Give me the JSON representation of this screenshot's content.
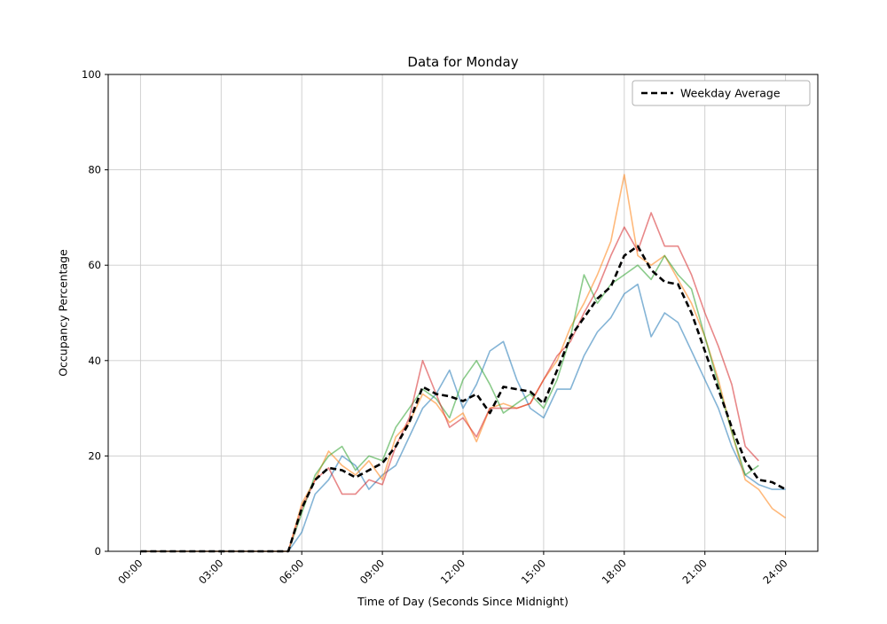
{
  "chart_data": {
    "type": "line",
    "title": "Data for Monday",
    "xlabel": "Time of Day (Seconds Since Midnight)",
    "ylabel": "Occupancy Percentage",
    "ylim": [
      0,
      100
    ],
    "xlim_hours": [
      -1.2,
      25.2
    ],
    "grid": true,
    "y_ticks": [
      0,
      20,
      40,
      60,
      80,
      100
    ],
    "x_ticks": [
      {
        "hour": 0,
        "label": "00:00"
      },
      {
        "hour": 3,
        "label": "03:00"
      },
      {
        "hour": 6,
        "label": "06:00"
      },
      {
        "hour": 9,
        "label": "09:00"
      },
      {
        "hour": 12,
        "label": "12:00"
      },
      {
        "hour": 15,
        "label": "15:00"
      },
      {
        "hour": 18,
        "label": "18:00"
      },
      {
        "hour": 21,
        "label": "21:00"
      },
      {
        "hour": 24,
        "label": "24:00"
      }
    ],
    "x_hours": [
      0,
      0.5,
      1,
      1.5,
      2,
      2.5,
      3,
      3.5,
      4,
      4.5,
      5,
      5.5,
      6,
      6.5,
      7,
      7.5,
      8,
      8.5,
      9,
      9.5,
      10,
      10.5,
      11,
      11.5,
      12,
      12.5,
      13,
      13.5,
      14,
      14.5,
      15,
      15.5,
      16,
      16.5,
      17,
      17.5,
      18,
      18.5,
      19,
      19.5,
      20,
      20.5,
      21,
      21.5,
      22,
      22.5,
      23,
      23.5,
      24
    ],
    "series": [
      {
        "name": "series-1",
        "data_name": "day-series-blue",
        "color": "rgba(31,119,180,0.55)",
        "width": 1.6,
        "dash": null,
        "values": [
          0,
          0,
          0,
          0,
          0,
          0,
          0,
          0,
          0,
          0,
          0,
          0,
          4,
          12,
          15,
          20,
          18,
          13,
          16,
          18,
          24,
          30,
          33,
          38,
          30,
          35,
          42,
          44,
          36,
          30,
          28,
          34,
          34,
          41,
          46,
          49,
          54,
          56,
          45,
          50,
          48,
          42,
          36,
          30,
          22,
          16,
          14,
          13,
          13
        ]
      },
      {
        "name": "series-2",
        "data_name": "day-series-orange",
        "color": "rgba(255,127,14,0.55)",
        "width": 1.6,
        "dash": null,
        "values": [
          0,
          0,
          0,
          0,
          0,
          0,
          0,
          0,
          0,
          0,
          0,
          0,
          10,
          15,
          21,
          18,
          16,
          19,
          15,
          24,
          27,
          33,
          31,
          27,
          29,
          23,
          30,
          31,
          30,
          31,
          36,
          40,
          47,
          52,
          58,
          65,
          79,
          62,
          60,
          62,
          57,
          52,
          45,
          36,
          25,
          15,
          13,
          9,
          7
        ]
      },
      {
        "name": "series-3",
        "data_name": "day-series-green",
        "color": "rgba(44,160,44,0.55)",
        "width": 1.6,
        "dash": null,
        "values": [
          0,
          0,
          0,
          0,
          0,
          0,
          0,
          0,
          0,
          0,
          0,
          0,
          8,
          16,
          20,
          22,
          17,
          20,
          19,
          26,
          30,
          34,
          32,
          28,
          36,
          40,
          35,
          29,
          31,
          33,
          30,
          36,
          45,
          58,
          52,
          56,
          58,
          60,
          57,
          62,
          58,
          55,
          45,
          35,
          25,
          16,
          18,
          null,
          null
        ]
      },
      {
        "name": "series-4",
        "data_name": "day-series-red",
        "color": "rgba(214,39,40,0.55)",
        "width": 1.6,
        "dash": null,
        "values": [
          0,
          0,
          0,
          0,
          0,
          0,
          0,
          0,
          0,
          0,
          0,
          0,
          9,
          15,
          17.5,
          12,
          12,
          15,
          14,
          22,
          28,
          40,
          33,
          26,
          28,
          24,
          30,
          30,
          30,
          31,
          36,
          41,
          44,
          50,
          55,
          62,
          68,
          63,
          71,
          64,
          64,
          58,
          50,
          43,
          35,
          22,
          19,
          null,
          null
        ]
      },
      {
        "name": "Weekday Average",
        "data_name": "weekday-average-line",
        "color": "#000000",
        "width": 2.6,
        "dash": "7 4",
        "values": [
          0,
          0,
          0,
          0,
          0,
          0,
          0,
          0,
          0,
          0,
          0,
          0,
          9,
          15,
          17.5,
          17,
          15.5,
          17,
          18.5,
          22,
          27,
          34.5,
          33,
          32.5,
          31.5,
          33,
          29,
          34.5,
          34,
          33.5,
          31,
          38,
          45,
          49,
          53,
          55.5,
          62,
          64,
          59,
          56.5,
          56,
          50,
          42,
          34,
          26,
          19,
          15,
          14.5,
          13
        ]
      }
    ],
    "legend": {
      "position": "upper right",
      "entries": [
        {
          "label": "Weekday Average",
          "color": "#000000",
          "dash": "7 4"
        }
      ]
    }
  }
}
